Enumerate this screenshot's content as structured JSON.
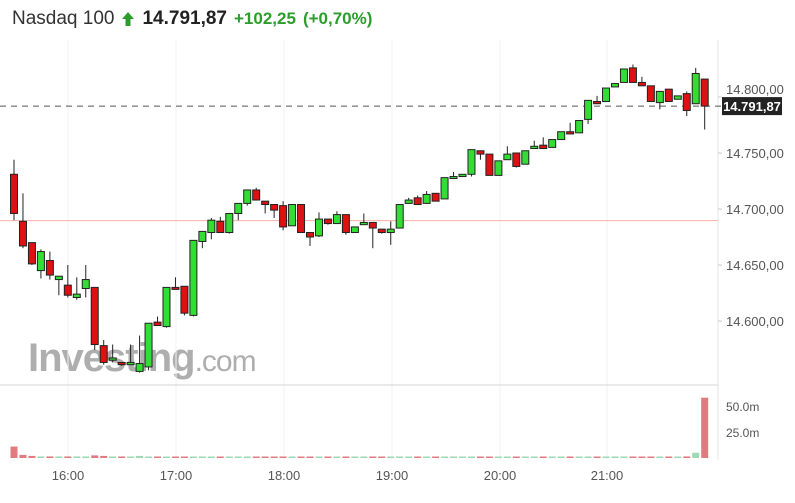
{
  "header": {
    "name": "Nasdaq 100",
    "price": "14.791,87",
    "change": "+102,25",
    "change_pct": "(+0,70%)",
    "direction_icon": "arrow-up-icon"
  },
  "watermark": "Investing.com",
  "colors": {
    "up": "#33dd33",
    "down": "#dd1111",
    "prev_close_line": "#f4b0a8",
    "vol_up": "#9fd8b4",
    "vol_down": "#e07b80",
    "change": "#2c9d2c"
  },
  "chart_data": {
    "type": "candlestick",
    "price_axis": {
      "ticks": [
        "14.800,00",
        "14.750,00",
        "14.700,00",
        "14.650,00",
        "14.600,00"
      ],
      "tick_values": [
        14800,
        14750,
        14700,
        14650,
        14600
      ]
    },
    "volume_axis": {
      "ticks": [
        "50.0m",
        "25.0m"
      ],
      "tick_values": [
        50,
        25
      ]
    },
    "time_axis": {
      "ticks": [
        "16:00",
        "17:00",
        "18:00",
        "19:00",
        "20:00",
        "21:00"
      ]
    },
    "current_price": 14791.87,
    "current_price_label": "14.791,87",
    "previous_close": 14689.62,
    "candles_fields": [
      "time",
      "open",
      "high",
      "low",
      "close",
      "volume_m"
    ],
    "candles": [
      [
        "15:30",
        14731,
        14744,
        14690,
        14696,
        11
      ],
      [
        "15:35",
        14689,
        14714,
        14665,
        14667,
        3
      ],
      [
        "15:40",
        14670,
        14670,
        14650,
        14651,
        2
      ],
      [
        "15:45",
        14645,
        14664,
        14638,
        14662,
        1.5
      ],
      [
        "15:50",
        14654,
        14662,
        14637,
        14641,
        1.5
      ],
      [
        "15:55",
        14637,
        14640,
        14623,
        14640,
        1.5
      ],
      [
        "16:00",
        14632,
        14650,
        14621,
        14623,
        1.5
      ],
      [
        "16:05",
        14621,
        14639,
        14619,
        14624,
        1.5
      ],
      [
        "16:10",
        14629,
        14650,
        14621,
        14637,
        1.5
      ],
      [
        "16:15",
        14630,
        14630,
        14574,
        14579,
        2.5
      ],
      [
        "16:20",
        14578,
        14583,
        14561,
        14563,
        2
      ],
      [
        "16:25",
        14565,
        14579,
        14563,
        14567,
        1.5
      ],
      [
        "16:30",
        14563,
        14563,
        14560,
        14561,
        1.5
      ],
      [
        "16:35",
        14561,
        14579,
        14561,
        14563,
        0.5
      ],
      [
        "16:40",
        14555,
        14587,
        14554,
        14562,
        2
      ],
      [
        "16:45",
        14559,
        14598,
        14556,
        14598,
        0.5
      ],
      [
        "16:50",
        14599,
        14604,
        14596,
        14596,
        0.5
      ],
      [
        "16:55",
        14595,
        14630,
        14594,
        14630,
        0.5
      ],
      [
        "17:00",
        14630,
        14639,
        14629,
        14629,
        0.5
      ],
      [
        "17:05",
        14631,
        14631,
        14605,
        14607,
        0.5
      ],
      [
        "17:10",
        14605,
        14672,
        14604,
        14672,
        0.5
      ],
      [
        "17:15",
        14671,
        14680,
        14665,
        14680,
        0.5
      ],
      [
        "17:20",
        14679,
        14692,
        14673,
        14690,
        0.5
      ],
      [
        "17:25",
        14689,
        14693,
        14679,
        14679,
        0.5
      ],
      [
        "17:30",
        14679,
        14696,
        14678,
        14696,
        0.5
      ],
      [
        "17:35",
        14696,
        14705,
        14690,
        14705,
        0.5
      ],
      [
        "17:40",
        14705,
        14717,
        14703,
        14717,
        0.5
      ],
      [
        "17:45",
        14717,
        14719,
        14708,
        14708,
        0.5
      ],
      [
        "17:50",
        14707,
        14707,
        14696,
        14704,
        0.5
      ],
      [
        "17:55",
        14704,
        14704,
        14692,
        14699,
        0.5
      ],
      [
        "18:00",
        14703,
        14707,
        14681,
        14684,
        0.5
      ],
      [
        "18:05",
        14685,
        14704,
        14685,
        14704,
        0.5
      ],
      [
        "18:10",
        14704,
        14704,
        14679,
        14679,
        0.5
      ],
      [
        "18:15",
        14679,
        14679,
        14667,
        14675,
        0.5
      ],
      [
        "18:20",
        14676,
        14697,
        14675,
        14691,
        0.5
      ],
      [
        "18:25",
        14691,
        14691,
        14686,
        14687,
        0.5
      ],
      [
        "18:30",
        14687,
        14698,
        14687,
        14695,
        0.5
      ],
      [
        "18:35",
        14695,
        14695,
        14677,
        14679,
        0.5
      ],
      [
        "18:40",
        14679,
        14684,
        14679,
        14684,
        0.5
      ],
      [
        "18:45",
        14686,
        14696,
        14686,
        14688,
        0.5
      ],
      [
        "18:50",
        14688,
        14688,
        14665,
        14683,
        0.5
      ],
      [
        "18:55",
        14682,
        14682,
        14678,
        14679,
        0.5
      ],
      [
        "19:00",
        14679,
        14689,
        14668,
        14682,
        0.5
      ],
      [
        "19:05",
        14683,
        14704,
        14683,
        14704,
        0.5
      ],
      [
        "19:10",
        14705,
        14710,
        14705,
        14708,
        0.5
      ],
      [
        "19:15",
        14710,
        14712,
        14704,
        14704,
        0.5
      ],
      [
        "19:20",
        14705,
        14716,
        14705,
        14713,
        0.5
      ],
      [
        "19:25",
        14714,
        14714,
        14707,
        14707,
        0.5
      ],
      [
        "19:30",
        14709,
        14728,
        14709,
        14728,
        0.5
      ],
      [
        "19:35",
        14728,
        14733,
        14728,
        14729,
        0.5
      ],
      [
        "19:40",
        14729,
        14731,
        14729,
        14731,
        0.5
      ],
      [
        "19:45",
        14731,
        14753,
        14729,
        14753,
        0.5
      ],
      [
        "19:50",
        14752,
        14752,
        14744,
        14749,
        0.5
      ],
      [
        "19:55",
        14749,
        14749,
        14730,
        14730,
        0.5
      ],
      [
        "20:00",
        14730,
        14743,
        14730,
        14743,
        0.5
      ],
      [
        "20:05",
        14744,
        14756,
        14744,
        14749,
        0.5
      ],
      [
        "20:10",
        14750,
        14750,
        14737,
        14738,
        0.5
      ],
      [
        "20:15",
        14740,
        14752,
        14740,
        14752,
        0.5
      ],
      [
        "20:20",
        14754,
        14761,
        14754,
        14756,
        0.5
      ],
      [
        "20:25",
        14757,
        14764,
        14754,
        14754,
        0.5
      ],
      [
        "20:30",
        14755,
        14762,
        14755,
        14762,
        0.5
      ],
      [
        "20:35",
        14762,
        14769,
        14762,
        14769,
        0.5
      ],
      [
        "20:40",
        14769,
        14777,
        14767,
        14767,
        0.5
      ],
      [
        "20:45",
        14768,
        14779,
        14768,
        14779,
        0.5
      ],
      [
        "20:50",
        14780,
        14797,
        14776,
        14797,
        0.5
      ],
      [
        "20:55",
        14796,
        14801,
        14794,
        14794,
        0.5
      ],
      [
        "21:00",
        14796,
        14808,
        14796,
        14808,
        0.5
      ],
      [
        "21:05",
        14809,
        14812,
        14809,
        14812,
        0.5
      ],
      [
        "21:10",
        14813,
        14825,
        14813,
        14825,
        0.5
      ],
      [
        "21:15",
        14826,
        14829,
        14813,
        14813,
        0.5
      ],
      [
        "21:20",
        14813,
        14818,
        14810,
        14810,
        0.5
      ],
      [
        "21:25",
        14810,
        14810,
        14796,
        14796,
        0.5
      ],
      [
        "21:30",
        14795,
        14805,
        14789,
        14805,
        0.5
      ],
      [
        "21:35",
        14807,
        14807,
        14796,
        14796,
        0.5
      ],
      [
        "21:40",
        14798,
        14801,
        14798,
        14801,
        0.5
      ],
      [
        "21:45",
        14803,
        14805,
        14783,
        14788,
        1.5
      ],
      [
        "21:50",
        14794,
        14826,
        14794,
        14821,
        5
      ],
      [
        "21:55",
        14816,
        14816,
        14771,
        14791.87,
        58
      ]
    ]
  }
}
